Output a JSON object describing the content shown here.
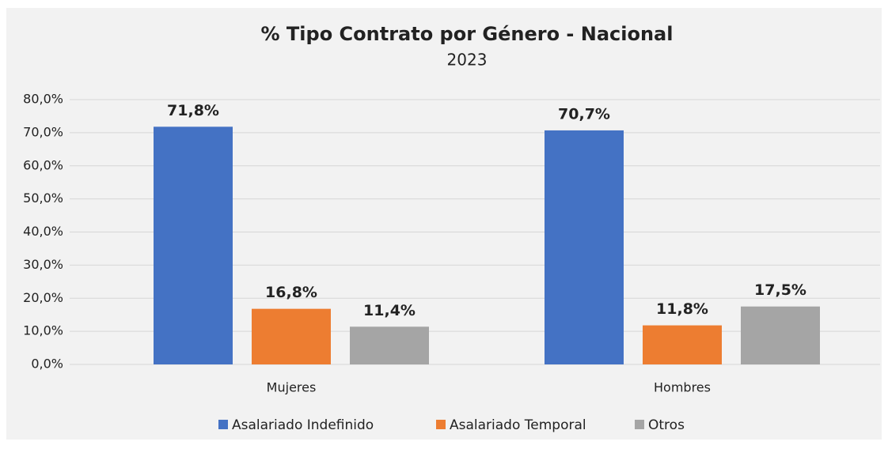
{
  "chart_data": {
    "type": "bar",
    "title": "% Tipo Contrato por Género - Nacional",
    "subtitle": "2023",
    "categories": [
      "Mujeres",
      "Hombres"
    ],
    "series": [
      {
        "name": "Asalariado Indefinido",
        "color": "#4472c4",
        "values": [
          71.8,
          70.7
        ],
        "value_labels": [
          "71,8%",
          "70,7%"
        ]
      },
      {
        "name": "Asalariado Temporal",
        "color": "#ed7d31",
        "values": [
          16.8,
          11.8
        ],
        "value_labels": [
          "16,8%",
          "11,8%"
        ]
      },
      {
        "name": "Otros",
        "color": "#a5a5a5",
        "values": [
          11.4,
          17.5
        ],
        "value_labels": [
          "11,4%",
          "17,5%"
        ]
      }
    ],
    "ylim": [
      0,
      80
    ],
    "yticks": [
      {
        "value": 0,
        "label": "0,0%"
      },
      {
        "value": 10,
        "label": "10,0%"
      },
      {
        "value": 20,
        "label": "20,0%"
      },
      {
        "value": 30,
        "label": "30,0%"
      },
      {
        "value": 40,
        "label": "40,0%"
      },
      {
        "value": 50,
        "label": "50,0%"
      },
      {
        "value": 60,
        "label": "60,0%"
      },
      {
        "value": 70,
        "label": "70,0%"
      },
      {
        "value": 80,
        "label": "80,0%"
      }
    ],
    "grid": true,
    "legend": "bottom"
  }
}
